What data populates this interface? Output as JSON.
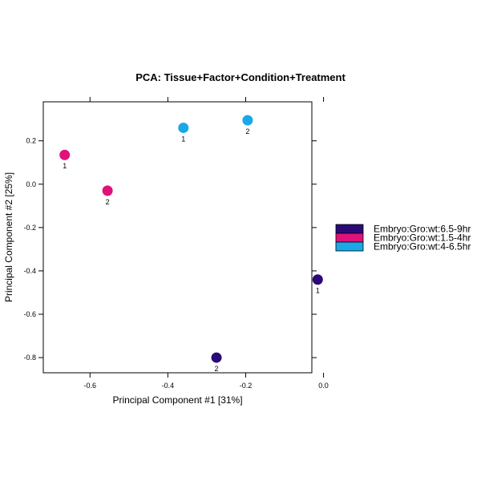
{
  "chart_data": {
    "type": "scatter",
    "title": "PCA: Tissue+Factor+Condition+Treatment",
    "xlabel": "Principal Component #1 [31%]",
    "ylabel": "Principal Component #2 [25%]",
    "xlim": [
      -0.72,
      -0.03
    ],
    "ylim": [
      -0.87,
      0.38
    ],
    "x_ticks": [
      -0.6,
      -0.4,
      -0.2,
      0.0
    ],
    "x_tick_labels": [
      "-0.6",
      "-0.4",
      "-0.2",
      "0.0"
    ],
    "y_ticks": [
      0.2,
      0.0,
      -0.2,
      -0.4,
      -0.6,
      -0.8
    ],
    "y_tick_labels": [
      "0.2",
      "0.0",
      "-0.2",
      "-0.4",
      "-0.6",
      "-0.8"
    ],
    "grid": false,
    "legend_position": "right",
    "series": [
      {
        "name": "Embryo:Gro:wt:6.5-9hr",
        "color": "#2a0a77",
        "points": [
          {
            "x": -0.015,
            "y": -0.44,
            "label": "1"
          },
          {
            "x": -0.275,
            "y": -0.8,
            "label": "2"
          }
        ]
      },
      {
        "name": "Embryo:Gro:wt:1.5-4hr",
        "color": "#e0117a",
        "points": [
          {
            "x": -0.665,
            "y": 0.135,
            "label": "1"
          },
          {
            "x": -0.555,
            "y": -0.03,
            "label": "2"
          }
        ]
      },
      {
        "name": "Embryo:Gro:wt:4-6.5hr",
        "color": "#1aa8e8",
        "points": [
          {
            "x": -0.36,
            "y": 0.26,
            "label": "1"
          },
          {
            "x": -0.195,
            "y": 0.295,
            "label": "2"
          }
        ]
      }
    ]
  }
}
